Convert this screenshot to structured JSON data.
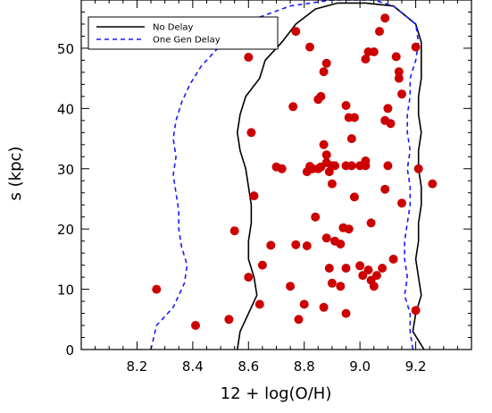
{
  "chart_data": {
    "type": "scatter",
    "title": "",
    "xlabel": "12 + log(O/H)",
    "ylabel": "s (kpc)",
    "xlim": [
      8.0,
      9.4
    ],
    "ylim": [
      0,
      58
    ],
    "xticks": [
      "8.2",
      "8.4",
      "8.6",
      "8.8",
      "9.0",
      "9.2"
    ],
    "yticks": [
      "0",
      "10",
      "20",
      "30",
      "40",
      "50"
    ],
    "grid": false,
    "legend_position": "top-left",
    "legend": [
      {
        "label": "No Delay",
        "style": "solid",
        "color": "#000000"
      },
      {
        "label": "One Gen Delay",
        "style": "dashed",
        "color": "#1a1aff"
      }
    ],
    "marker_color": "#cc0000",
    "series": [
      {
        "name": "No Delay",
        "kind": "contour",
        "left": [
          [
            8.56,
            0
          ],
          [
            8.57,
            3
          ],
          [
            8.6,
            6
          ],
          [
            8.63,
            9
          ],
          [
            8.62,
            12
          ],
          [
            8.6,
            15
          ],
          [
            8.6,
            18
          ],
          [
            8.61,
            21
          ],
          [
            8.61,
            24
          ],
          [
            8.6,
            27
          ],
          [
            8.59,
            30
          ],
          [
            8.57,
            33
          ],
          [
            8.56,
            36
          ],
          [
            8.57,
            39
          ],
          [
            8.59,
            42
          ],
          [
            8.64,
            45
          ],
          [
            8.66,
            48
          ],
          [
            8.72,
            51
          ],
          [
            8.77,
            54
          ],
          [
            8.84,
            56.5
          ],
          [
            8.92,
            57.5
          ],
          [
            9.02,
            57.5
          ],
          [
            9.12,
            57
          ]
        ],
        "right": [
          [
            9.23,
            0
          ],
          [
            9.19,
            3
          ],
          [
            9.2,
            6
          ],
          [
            9.22,
            9
          ],
          [
            9.21,
            12
          ],
          [
            9.2,
            15
          ],
          [
            9.21,
            18
          ],
          [
            9.21,
            21
          ],
          [
            9.22,
            24
          ],
          [
            9.22,
            27
          ],
          [
            9.21,
            30
          ],
          [
            9.21,
            33
          ],
          [
            9.22,
            36
          ],
          [
            9.21,
            39
          ],
          [
            9.21,
            42
          ],
          [
            9.22,
            45
          ],
          [
            9.22,
            48
          ],
          [
            9.22,
            51
          ],
          [
            9.2,
            54
          ],
          [
            9.12,
            57
          ]
        ]
      },
      {
        "name": "One Gen Delay",
        "kind": "contour",
        "left": [
          [
            8.25,
            0
          ],
          [
            8.27,
            4
          ],
          [
            8.33,
            7
          ],
          [
            8.37,
            11
          ],
          [
            8.38,
            14
          ],
          [
            8.36,
            17
          ],
          [
            8.35,
            20
          ],
          [
            8.35,
            23
          ],
          [
            8.34,
            26
          ],
          [
            8.33,
            29
          ],
          [
            8.34,
            32
          ],
          [
            8.33,
            35
          ],
          [
            8.34,
            38
          ],
          [
            8.36,
            41
          ],
          [
            8.39,
            44
          ],
          [
            8.43,
            47
          ],
          [
            8.49,
            50
          ],
          [
            8.56,
            53
          ],
          [
            8.63,
            55
          ],
          [
            8.75,
            57
          ],
          [
            8.9,
            58
          ],
          [
            9.05,
            58
          ],
          [
            9.12,
            57
          ]
        ],
        "right": [
          [
            9.19,
            0
          ],
          [
            9.18,
            3
          ],
          [
            9.18,
            6
          ],
          [
            9.16,
            9
          ],
          [
            9.17,
            12
          ],
          [
            9.16,
            15
          ],
          [
            9.16,
            18
          ],
          [
            9.17,
            21
          ],
          [
            9.18,
            24
          ],
          [
            9.18,
            27
          ],
          [
            9.17,
            30
          ],
          [
            9.18,
            33
          ],
          [
            9.17,
            36
          ],
          [
            9.17,
            39
          ],
          [
            9.18,
            42
          ],
          [
            9.18,
            45
          ],
          [
            9.2,
            48
          ],
          [
            9.21,
            51
          ],
          [
            9.2,
            54
          ],
          [
            9.12,
            57
          ]
        ]
      },
      {
        "name": "",
        "kind": "points",
        "x": [
          8.27,
          8.41,
          8.53,
          8.55,
          8.6,
          8.6,
          8.61,
          8.62,
          8.64,
          8.65,
          8.68,
          8.7,
          8.72,
          8.75,
          8.76,
          8.77,
          8.77,
          8.78,
          8.8,
          8.81,
          8.81,
          8.82,
          8.82,
          8.83,
          8.84,
          8.85,
          8.85,
          8.86,
          8.86,
          8.87,
          8.87,
          8.87,
          8.88,
          8.88,
          8.88,
          8.88,
          8.89,
          8.89,
          8.9,
          8.9,
          8.9,
          8.91,
          8.91,
          8.93,
          8.93,
          8.94,
          8.95,
          8.95,
          8.95,
          8.95,
          8.96,
          8.96,
          8.97,
          8.97,
          8.98,
          8.98,
          9.0,
          9.0,
          9.01,
          9.02,
          9.02,
          9.02,
          9.03,
          9.03,
          9.04,
          9.04,
          9.05,
          9.05,
          9.06,
          9.07,
          9.08,
          9.09,
          9.09,
          9.09,
          9.1,
          9.1,
          9.11,
          9.12,
          9.13,
          9.14,
          9.14,
          9.15,
          9.15,
          9.2,
          9.2,
          9.21,
          9.26
        ],
        "y": [
          10,
          4,
          5,
          19.7,
          48.5,
          12,
          36,
          25.5,
          7.5,
          14,
          17.3,
          30.3,
          30,
          10.5,
          40.3,
          17.4,
          52.8,
          5,
          7.5,
          17.2,
          29.5,
          50.2,
          30.4,
          30,
          22,
          41.5,
          30,
          42,
          30.3,
          7,
          34,
          46.1,
          32.3,
          47.5,
          18.5,
          31,
          13.5,
          29.5,
          27.5,
          11,
          30.5,
          18,
          30.5,
          10.5,
          17.5,
          20.2,
          6,
          13.5,
          40.5,
          30.5,
          38.5,
          20,
          35,
          30.5,
          38.5,
          25.3,
          13.9,
          30.5,
          12.3,
          48.2,
          30.5,
          31.3,
          13.2,
          49.4,
          11.5,
          21,
          10.5,
          49.4,
          12.3,
          52.8,
          13.5,
          55,
          38,
          26.6,
          30.5,
          40,
          37.5,
          15,
          48.6,
          45,
          46.1,
          42.4,
          24.3,
          6.5,
          50.2,
          30,
          27.5
        ]
      }
    ]
  }
}
